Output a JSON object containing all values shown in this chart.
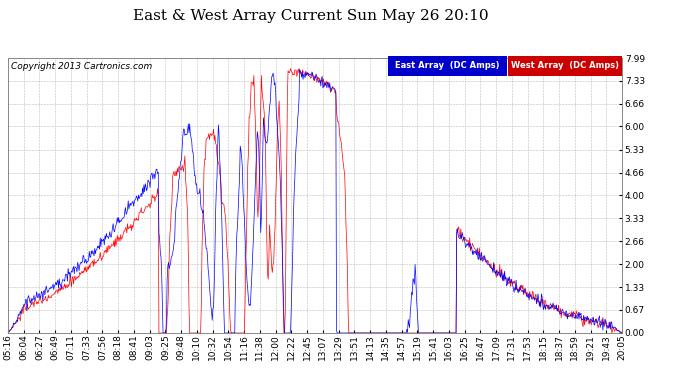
{
  "title": "East & West Array Current Sun May 26 20:10",
  "copyright": "Copyright 2013 Cartronics.com",
  "ylabel_right_ticks": [
    0.0,
    0.67,
    1.33,
    2.0,
    2.66,
    3.33,
    4.0,
    4.66,
    5.33,
    6.0,
    6.66,
    7.33,
    7.99
  ],
  "ymin": 0.0,
  "ymax": 7.99,
  "east_color": "#0000FF",
  "west_color": "#FF0000",
  "legend_east": "East Array  (DC Amps)",
  "legend_west": "West Array  (DC Amps)",
  "legend_east_bg": "#0000CC",
  "legend_west_bg": "#CC0000",
  "background_color": "#FFFFFF",
  "plot_bg_color": "#FFFFFF",
  "grid_color": "#BBBBBB",
  "title_fontsize": 11,
  "tick_fontsize": 6.5,
  "copyright_fontsize": 6.5,
  "x_tick_labels": [
    "05:16",
    "06:04",
    "06:27",
    "06:49",
    "07:11",
    "07:33",
    "07:56",
    "08:18",
    "08:41",
    "09:03",
    "09:25",
    "09:48",
    "10:10",
    "10:32",
    "10:54",
    "11:16",
    "11:38",
    "12:00",
    "12:22",
    "12:45",
    "13:07",
    "13:29",
    "13:51",
    "14:13",
    "14:35",
    "14:57",
    "15:19",
    "15:41",
    "16:03",
    "16:25",
    "16:47",
    "17:09",
    "17:31",
    "17:53",
    "18:15",
    "18:37",
    "18:59",
    "19:21",
    "19:43",
    "20:05"
  ]
}
